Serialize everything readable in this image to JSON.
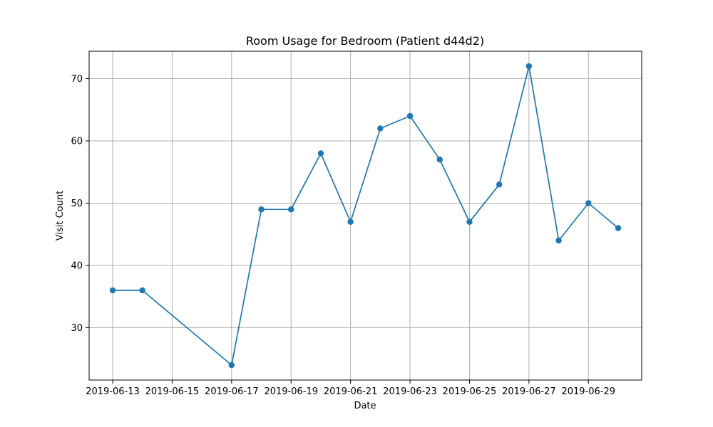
{
  "chart_data": {
    "type": "line",
    "title": "Room Usage for Bedroom (Patient d44d2)",
    "xlabel": "Date",
    "ylabel": "Visit Count",
    "x": [
      "2019-06-13",
      "2019-06-14",
      "2019-06-17",
      "2019-06-18",
      "2019-06-19",
      "2019-06-20",
      "2019-06-21",
      "2019-06-22",
      "2019-06-23",
      "2019-06-24",
      "2019-06-25",
      "2019-06-26",
      "2019-06-27",
      "2019-06-28",
      "2019-06-29",
      "2019-06-30"
    ],
    "series": [
      {
        "values": [
          36,
          36,
          24,
          49,
          49,
          58,
          47,
          62,
          64,
          57,
          47,
          53,
          72,
          44,
          50,
          46
        ]
      }
    ],
    "xticks": [
      "2019-06-13",
      "2019-06-15",
      "2019-06-17",
      "2019-06-19",
      "2019-06-21",
      "2019-06-23",
      "2019-06-25",
      "2019-06-27",
      "2019-06-29"
    ],
    "xlim": [
      "2019-06-12T05:00",
      "2019-06-30T19:00"
    ],
    "yticks": [
      30,
      40,
      50,
      60,
      70
    ],
    "ylim": [
      21.6,
      74.4
    ],
    "grid": true,
    "color": "#1f77b4"
  }
}
